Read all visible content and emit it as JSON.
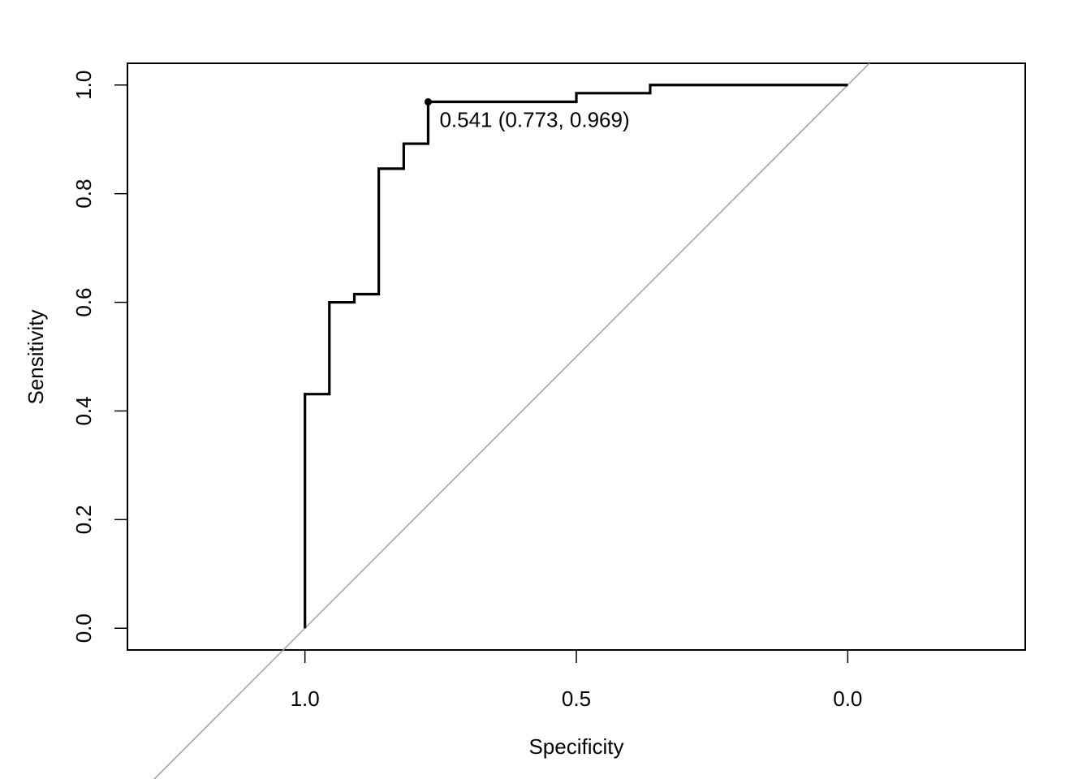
{
  "chart_data": {
    "type": "line",
    "title": "",
    "xlabel": "Specificity",
    "ylabel": "Sensitivity",
    "x_reversed": true,
    "xlim": [
      1.327,
      -0.327
    ],
    "ylim": [
      -0.04,
      1.04
    ],
    "x_ticks": [
      1.0,
      0.5,
      0.0
    ],
    "x_tick_labels": [
      "1.0",
      "0.5",
      "0.0"
    ],
    "y_ticks": [
      0.0,
      0.2,
      0.4,
      0.6,
      0.8,
      1.0
    ],
    "y_tick_labels": [
      "0.0",
      "0.2",
      "0.4",
      "0.6",
      "0.8",
      "1.0"
    ],
    "grid": false,
    "series": [
      {
        "line_color": "#000000",
        "specificity": [
          1.0,
          1.0,
          0.955,
          0.955,
          0.909,
          0.909,
          0.864,
          0.864,
          0.818,
          0.818,
          0.773,
          0.773,
          0.5,
          0.5,
          0.364,
          0.364,
          0.0
        ],
        "sensitivity": [
          0.0,
          0.431,
          0.431,
          0.6,
          0.6,
          0.615,
          0.615,
          0.846,
          0.846,
          0.892,
          0.892,
          0.969,
          0.969,
          0.985,
          0.985,
          1.0,
          1.0
        ]
      }
    ],
    "reference_line": {
      "color": "#a0a0a0",
      "from": [
        1.0,
        0.0
      ],
      "to": [
        0.0,
        1.0
      ]
    },
    "best_threshold": {
      "specificity": 0.773,
      "sensitivity": 0.969,
      "label": "0.541 (0.773, 0.969)"
    }
  }
}
